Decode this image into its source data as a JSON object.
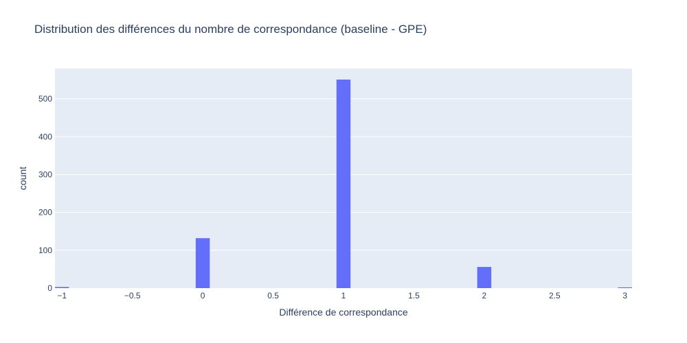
{
  "chart_data": {
    "type": "bar",
    "title": "Distribution des différences du nombre de correspondance (baseline - GPE)",
    "xlabel": "Différence de correspondance",
    "ylabel": "count",
    "xlim": [
      -1.05,
      3.05
    ],
    "ylim": [
      0,
      580
    ],
    "bin_width": 0.2,
    "x_ticks": [
      {
        "value": -1,
        "label": "−1"
      },
      {
        "value": -0.5,
        "label": "−0.5"
      },
      {
        "value": 0,
        "label": "0"
      },
      {
        "value": 0.5,
        "label": "0.5"
      },
      {
        "value": 1,
        "label": "1"
      },
      {
        "value": 1.5,
        "label": "1.5"
      },
      {
        "value": 2,
        "label": "2"
      },
      {
        "value": 2.5,
        "label": "2.5"
      },
      {
        "value": 3,
        "label": "3"
      }
    ],
    "y_ticks": [
      {
        "value": 0,
        "label": "0"
      },
      {
        "value": 100,
        "label": "100"
      },
      {
        "value": 200,
        "label": "200"
      },
      {
        "value": 300,
        "label": "300"
      },
      {
        "value": 400,
        "label": "400"
      },
      {
        "value": 500,
        "label": "500"
      }
    ],
    "bins": [
      {
        "x": -1,
        "count": 3
      },
      {
        "x": 0,
        "count": 132
      },
      {
        "x": 1,
        "count": 551
      },
      {
        "x": 2,
        "count": 56
      },
      {
        "x": 3,
        "count": 2
      }
    ],
    "grid": true,
    "colors": {
      "bar": "#636efa",
      "plot_background": "#e5ecf6",
      "grid": "#ffffff",
      "text": "#2a3f5f"
    }
  }
}
